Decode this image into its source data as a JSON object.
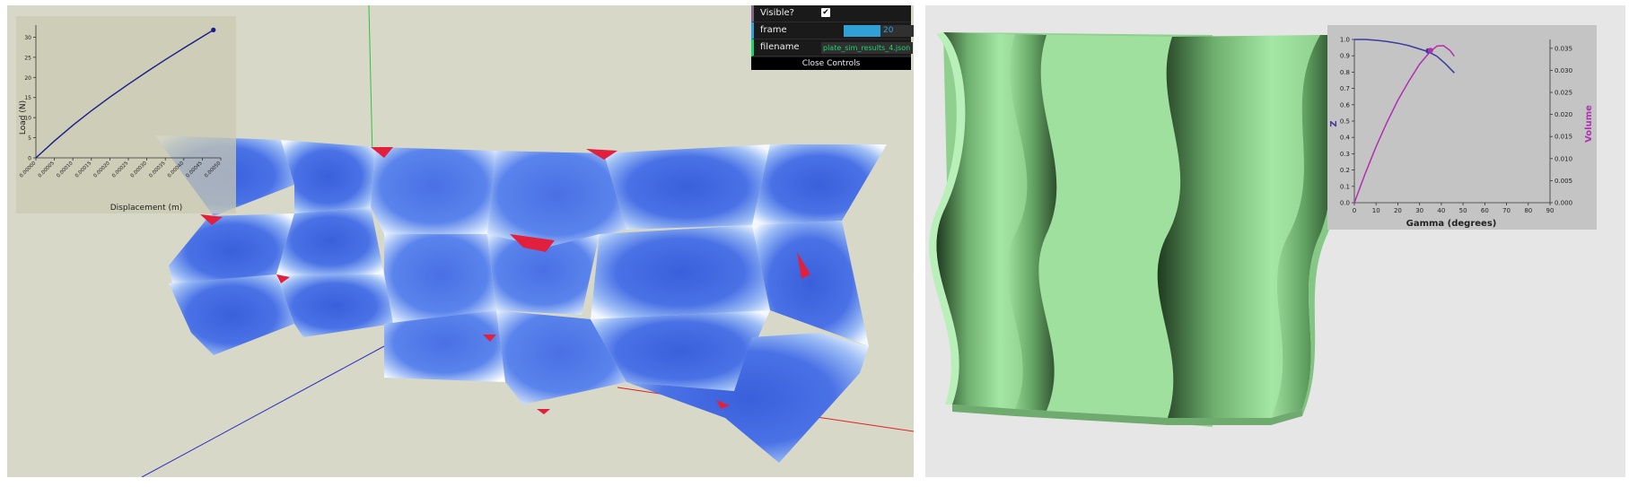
{
  "controls": {
    "visible_label": "Visible?",
    "visible_checked": true,
    "check_glyph": "✔",
    "frame_label": "frame",
    "frame_value": "20",
    "frame_fraction": 0.62,
    "filename_label": "filename",
    "filename_value": "plate_sim_results_4.json",
    "close_label": "Close Controls"
  },
  "colors": {
    "scene_background": "#d8d8c8",
    "mesh_blue": "#3f66e0",
    "stress_red": "#e0203c",
    "corrugated_green": "#9fe09f",
    "chart2_z_series": "#3b3b9e",
    "chart2_volume_series": "#b030b0",
    "controls_background": "#1a1a1a"
  },
  "chart_data": [
    {
      "type": "line",
      "title": "",
      "xlabel": "Displacement (m)",
      "ylabel": "Load (N)",
      "x_tick_labels": [
        "0.00000",
        "0.00005",
        "0.00010",
        "0.00015",
        "0.00020",
        "0.00025",
        "0.00030",
        "0.00035",
        "0.00040",
        "0.00045",
        "0.00050"
      ],
      "y_ticks": [
        0,
        5,
        10,
        15,
        20,
        25,
        30
      ],
      "xlim": [
        0,
        0.0005
      ],
      "ylim": [
        0,
        33
      ],
      "series": [
        {
          "x": [
            0,
            5e-05,
            0.0001,
            0.00015,
            0.0002,
            0.00025,
            0.0003,
            0.00035,
            0.0004,
            0.00045,
            0.00048
          ],
          "y": [
            0,
            4.2,
            8.1,
            11.7,
            15.1,
            18.3,
            21.4,
            24.4,
            27.3,
            30.1,
            31.8
          ]
        }
      ],
      "marker": {
        "x": 0.00048,
        "y": 31.8
      }
    },
    {
      "type": "line",
      "title": "",
      "xlabel": "Gamma (degrees)",
      "ylabel": "Z",
      "y2label": "Volume",
      "x_ticks": [
        0,
        10,
        20,
        30,
        40,
        50,
        60,
        70,
        80,
        90
      ],
      "y_ticks": [
        "0.0",
        "0.1",
        "0.2",
        "0.3",
        "0.4",
        "0.5",
        "0.6",
        "0.7",
        "0.8",
        "0.9",
        "1.0"
      ],
      "y2_ticks": [
        "0.000",
        "0.005",
        "0.010",
        "0.015",
        "0.020",
        "0.025",
        "0.030",
        "0.035"
      ],
      "xlim": [
        0,
        90
      ],
      "ylim": [
        0,
        1.0
      ],
      "y2lim": [
        0,
        0.037
      ],
      "series": [
        {
          "axis": "left",
          "x": [
            0,
            5,
            10,
            15,
            20,
            25,
            30,
            34,
            38,
            42,
            46
          ],
          "y": [
            1.0,
            1.0,
            0.995,
            0.988,
            0.977,
            0.962,
            0.942,
            0.925,
            0.897,
            0.85,
            0.795
          ]
        },
        {
          "axis": "right",
          "x": [
            0,
            5,
            10,
            15,
            20,
            25,
            30,
            35,
            38,
            41,
            44,
            46
          ],
          "y": [
            0,
            0.0066,
            0.0127,
            0.0182,
            0.0232,
            0.0275,
            0.0314,
            0.0343,
            0.0355,
            0.0356,
            0.0345,
            0.0332
          ]
        }
      ],
      "markers": [
        {
          "axis": "left",
          "x": 34,
          "y": 0.93
        },
        {
          "axis": "right",
          "x": 35,
          "y": 0.0345
        }
      ]
    }
  ]
}
